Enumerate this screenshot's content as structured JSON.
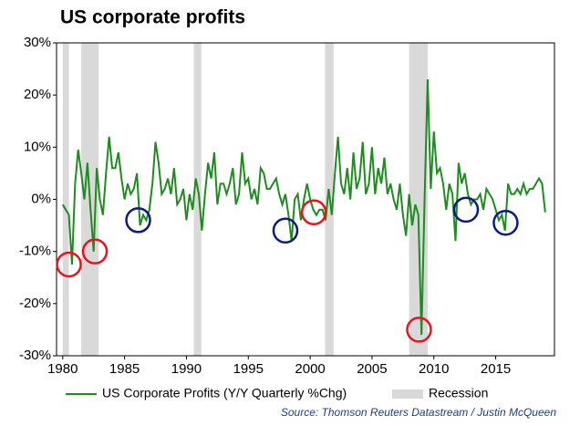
{
  "chart_data": {
    "type": "line",
    "title": "US corporate profits",
    "source": "Source: Thomson Reuters Datastream / Justin McQueen",
    "recession_label": "Recession",
    "recession_color": "#d9d9d9",
    "recessions": [
      [
        1980.0,
        1980.5
      ],
      [
        1981.5,
        1982.9
      ],
      [
        1990.6,
        1991.2
      ],
      [
        2001.2,
        2001.9
      ],
      [
        2008.0,
        2009.5
      ]
    ],
    "x": [
      1980,
      1980.25,
      1980.5,
      1980.75,
      1981,
      1981.25,
      1981.5,
      1981.75,
      1982,
      1982.25,
      1982.5,
      1982.75,
      1983,
      1983.25,
      1983.5,
      1983.75,
      1984,
      1984.25,
      1984.5,
      1984.75,
      1985,
      1985.25,
      1985.5,
      1985.75,
      1986,
      1986.25,
      1986.5,
      1986.75,
      1987,
      1987.25,
      1987.5,
      1987.75,
      1988,
      1988.25,
      1988.5,
      1988.75,
      1989,
      1989.25,
      1989.5,
      1989.75,
      1990,
      1990.25,
      1990.5,
      1990.75,
      1991,
      1991.25,
      1991.5,
      1991.75,
      1992,
      1992.25,
      1992.5,
      1992.75,
      1993,
      1993.25,
      1993.5,
      1993.75,
      1994,
      1994.25,
      1994.5,
      1994.75,
      1995,
      1995.25,
      1995.5,
      1995.75,
      1996,
      1996.25,
      1996.5,
      1996.75,
      1997,
      1997.25,
      1997.5,
      1997.75,
      1998,
      1998.25,
      1998.5,
      1998.75,
      1999,
      1999.25,
      1999.5,
      1999.75,
      2000,
      2000.25,
      2000.5,
      2000.75,
      2001,
      2001.25,
      2001.5,
      2001.75,
      2002,
      2002.25,
      2002.5,
      2002.75,
      2003,
      2003.25,
      2003.5,
      2003.75,
      2004,
      2004.25,
      2004.5,
      2004.75,
      2005,
      2005.25,
      2005.5,
      2005.75,
      2006,
      2006.25,
      2006.5,
      2006.75,
      2007,
      2007.25,
      2007.5,
      2007.75,
      2008,
      2008.25,
      2008.5,
      2008.75,
      2009,
      2009.25,
      2009.5,
      2009.75,
      2010,
      2010.25,
      2010.5,
      2010.75,
      2011,
      2011.25,
      2011.5,
      2011.75,
      2012,
      2012.25,
      2012.5,
      2012.75,
      2013,
      2013.25,
      2013.5,
      2013.75,
      2014,
      2014.25,
      2014.5,
      2014.75,
      2015,
      2015.25,
      2015.5,
      2015.75,
      2016,
      2016.25,
      2016.5,
      2016.75,
      2017,
      2017.25,
      2017.5,
      2017.75,
      2018,
      2018.25,
      2018.5,
      2018.75,
      2019
    ],
    "series": [
      {
        "name": "US Corporate Profits (Y/Y Quarterly %Chg)",
        "color": "#1e8c1e",
        "values": [
          -1,
          -2,
          -3,
          -12.5,
          3,
          9.5,
          5,
          0,
          7,
          -2,
          -10,
          6,
          0,
          -3,
          5,
          12,
          6,
          6,
          9,
          4,
          0,
          3,
          1,
          2,
          5,
          -5,
          -3,
          -4,
          -2,
          3,
          11,
          7,
          1,
          2,
          4,
          1,
          6,
          -1,
          0,
          2,
          -4,
          1,
          -2,
          4,
          1,
          -6,
          1,
          7,
          4,
          9,
          -1,
          3,
          3,
          1,
          3,
          6,
          -1,
          1,
          9,
          3,
          4,
          0,
          2,
          -1,
          6,
          5,
          2,
          2,
          3,
          4,
          1,
          -1,
          1,
          -3,
          -8,
          0,
          1,
          -4,
          0,
          3,
          0,
          -2,
          -3,
          -2,
          -2,
          -4,
          2,
          -3,
          5,
          12,
          3,
          1,
          6,
          0,
          9,
          2,
          4,
          11,
          1,
          3,
          10,
          1,
          6,
          3,
          8,
          1,
          3,
          0,
          -2,
          3,
          -3,
          -7,
          1,
          -5,
          -1,
          -3,
          -26,
          0,
          23,
          2,
          13,
          5,
          6,
          3,
          -2,
          3,
          1,
          -8,
          7,
          3,
          5,
          1,
          -1,
          0,
          0,
          1,
          -2,
          2,
          1,
          0,
          -2,
          -4,
          -3,
          -6,
          3,
          1,
          1,
          2,
          1,
          3,
          1,
          2,
          2,
          3,
          4,
          3,
          -2.5
        ]
      }
    ],
    "circles": [
      {
        "x": 1980.5,
        "y": -12.5,
        "color": "#e8141b"
      },
      {
        "x": 1982.6,
        "y": -10,
        "color": "#e8141b"
      },
      {
        "x": 1986.1,
        "y": -4,
        "color": "#0d1a80"
      },
      {
        "x": 1998.0,
        "y": -6,
        "color": "#0d1a80"
      },
      {
        "x": 2000.3,
        "y": -2.5,
        "color": "#e8141b"
      },
      {
        "x": 2008.8,
        "y": -25,
        "color": "#e8141b"
      },
      {
        "x": 2012.6,
        "y": -2,
        "color": "#0d1a80"
      },
      {
        "x": 2015.8,
        "y": -4.5,
        "color": "#0d1a80"
      }
    ],
    "xlim": [
      1979.5,
      2019.75
    ],
    "xticks": [
      1980,
      1985,
      1990,
      1995,
      2000,
      2005,
      2010,
      2015
    ],
    "ylim": [
      -30,
      30
    ],
    "yticks": [
      {
        "value": -30,
        "label": "-30%"
      },
      {
        "value": -20,
        "label": "-20%"
      },
      {
        "value": -10,
        "label": "-10%"
      },
      {
        "value": 0,
        "label": "0%"
      },
      {
        "value": 10,
        "label": "10%"
      },
      {
        "value": 20,
        "label": "20%"
      },
      {
        "value": 30,
        "label": "30%"
      }
    ]
  }
}
